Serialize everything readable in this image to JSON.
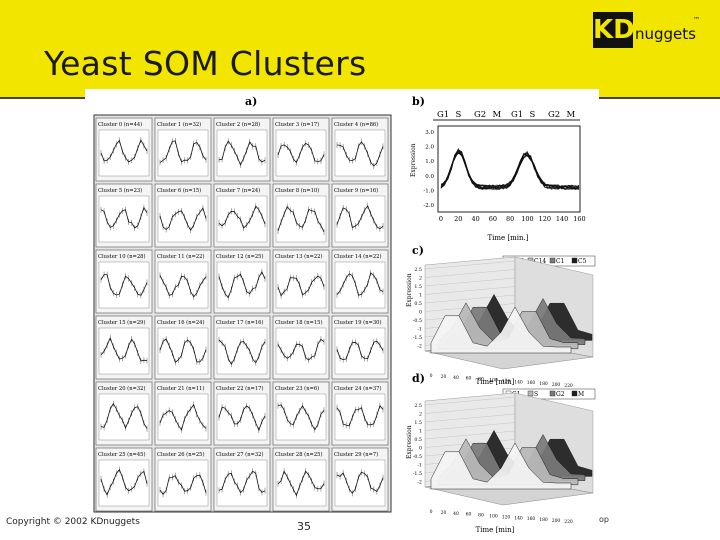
{
  "slide": {
    "title": "Yeast SOM Clusters",
    "logo": {
      "mark": "KD",
      "text": "nuggets",
      "tm": "™"
    },
    "copyright": "Copyright © 2002 KDnuggets",
    "page_number": "35",
    "edge_text": "op"
  },
  "figure": {
    "panel_a": {
      "label": "a)",
      "clusters": [
        "Cluster 0 (n=44)",
        "Cluster 1 (n=32)",
        "Cluster 2 (n=28)",
        "Cluster 3 (n=17)",
        "Cluster 4 (n=86)",
        "Cluster 5 (n=23)",
        "Cluster 6 (n=15)",
        "Cluster 7 (n=24)",
        "Cluster 8 (n=10)",
        "Cluster 9 (n=16)",
        "Cluster 10 (n=28)",
        "Cluster 11 (n=22)",
        "Cluster 12 (n=25)",
        "Cluster 13 (n=22)",
        "Cluster 14 (n=22)",
        "Cluster 15 (n=29)",
        "Cluster 16 (n=24)",
        "Cluster 17 (n=16)",
        "Cluster 18 (n=15)",
        "Cluster 19 (n=30)",
        "Cluster 20 (n=32)",
        "Cluster 21 (n=11)",
        "Cluster 22 (n=17)",
        "Cluster 23 (n=6)",
        "Cluster 24 (n=37)",
        "Cluster 25 (n=45)",
        "Cluster 26 (n=25)",
        "Cluster 27 (n=32)",
        "Cluster 28 (n=25)",
        "Cluster 29 (n=7)"
      ]
    },
    "panel_b": {
      "label": "b)",
      "phases": [
        "G1",
        "S",
        "G2",
        "M",
        "G1",
        "S",
        "G2",
        "M"
      ],
      "ylabel": "Expression",
      "yticks": [
        "3.0",
        "2.0",
        "1.0",
        "0.0",
        "-1.0",
        "-2.0"
      ],
      "xticks": [
        "0",
        "20",
        "40",
        "60",
        "80",
        "100",
        "120",
        "140",
        "160"
      ],
      "xlabel": "Time [min.]"
    },
    "panel_c": {
      "label": "c)",
      "legend": [
        "C29",
        "C14",
        "C1",
        "C5"
      ],
      "ylabel": "Expression",
      "zticks": [
        "2.5",
        "2",
        "1.5",
        "1",
        "0.5",
        "0",
        "-0.5",
        "-1",
        "-1.5",
        "-2"
      ],
      "xlabel": "Time [min]"
    },
    "panel_d": {
      "label": "d)",
      "legend": [
        "G1",
        "S",
        "G2",
        "M"
      ],
      "ylabel": "Expression",
      "zticks": [
        "2.5",
        "2",
        "1.5",
        "1",
        "0.5",
        "0",
        "-0.5",
        "-1",
        "-1.5",
        "-2"
      ],
      "xlabel": "Time [min]"
    }
  }
}
